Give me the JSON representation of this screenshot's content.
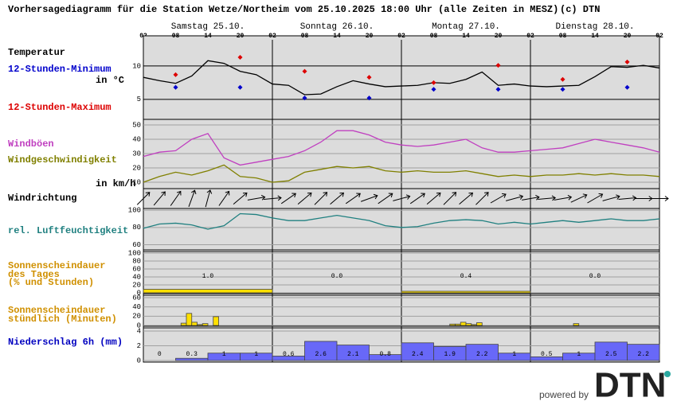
{
  "header": {
    "title": "Vorhersagediagramm für die Station Wetze/Northeim vom 25.10.2025 18:00 Uhr (alle Zeiten in MESZ)",
    "copyright": "(c) DTN",
    "days": [
      "Samstag 25.10.",
      "Sonntag 26.10.",
      "Montag 27.10.",
      "Dienstag 28.10."
    ],
    "xlim": [
      0,
      96
    ],
    "xticks": [
      {
        "value": 0,
        "label": "02"
      },
      {
        "value": 6,
        "label": "08"
      },
      {
        "value": 12,
        "label": "14"
      },
      {
        "value": 18,
        "label": "20"
      },
      {
        "value": 24,
        "label": "02"
      },
      {
        "value": 30,
        "label": "08"
      },
      {
        "value": 36,
        "label": "14"
      },
      {
        "value": 42,
        "label": "20"
      },
      {
        "value": 48,
        "label": "02"
      },
      {
        "value": 54,
        "label": "08"
      },
      {
        "value": 60,
        "label": "14"
      },
      {
        "value": 66,
        "label": "20"
      },
      {
        "value": 72,
        "label": "02"
      },
      {
        "value": 78,
        "label": "08"
      },
      {
        "value": 84,
        "label": "14"
      },
      {
        "value": 90,
        "label": "20"
      },
      {
        "value": 96,
        "label": "02"
      }
    ]
  },
  "chart_data": [
    {
      "type": "line",
      "label": "Temperatur",
      "unit": "in °C",
      "ylim": [
        2,
        14
      ],
      "yticks": [
        5,
        10
      ],
      "grid_color": "#000000",
      "x": [
        0,
        3,
        6,
        9,
        12,
        15,
        18,
        21,
        24,
        27,
        30,
        33,
        36,
        39,
        42,
        45,
        48,
        51,
        54,
        57,
        60,
        63,
        66,
        69,
        72,
        75,
        78,
        81,
        84,
        87,
        90,
        93,
        96
      ],
      "series": [
        {
          "color": "#000000",
          "values": [
            8.3,
            7.8,
            7.4,
            8.5,
            10.8,
            10.4,
            9.2,
            8.7,
            7.3,
            7.1,
            5.7,
            5.8,
            6.9,
            7.8,
            7.3,
            6.9,
            7.0,
            7.1,
            7.5,
            7.4,
            8.0,
            9.1,
            7.1,
            7.3,
            7.0,
            6.9,
            7.0,
            7.1,
            8.4,
            9.9,
            9.8,
            10.1,
            9.7
          ]
        },
        {
          "name": "12-Stunden-Maximum",
          "color": "#dd0000",
          "marker": "diamond",
          "x": [
            6,
            18,
            30,
            42,
            54,
            66,
            78,
            90
          ],
          "values": [
            8.7,
            11.3,
            9.2,
            8.3,
            7.5,
            10.1,
            8.0,
            10.6
          ]
        },
        {
          "name": "12-Stunden-Minimum",
          "color": "#0000cc",
          "marker": "diamond",
          "x": [
            6,
            18,
            30,
            42,
            54,
            66,
            78,
            90
          ],
          "values": [
            6.8,
            6.8,
            5.2,
            5.2,
            6.5,
            6.5,
            6.5,
            6.8
          ]
        }
      ]
    },
    {
      "type": "line",
      "unit": "in km/h",
      "ylim": [
        5,
        52
      ],
      "yticks": [
        10,
        20,
        30,
        40,
        50
      ],
      "grid_color": "#a0a0a0",
      "x": [
        0,
        3,
        6,
        9,
        12,
        15,
        18,
        21,
        24,
        27,
        30,
        33,
        36,
        39,
        42,
        45,
        48,
        51,
        54,
        57,
        60,
        63,
        66,
        69,
        72,
        75,
        78,
        81,
        84,
        87,
        90,
        93,
        96
      ],
      "series": [
        {
          "name": "Windböen",
          "color": "#c040c0",
          "values": [
            28,
            31,
            32,
            40,
            44,
            27,
            22,
            24,
            26,
            28,
            32,
            38,
            46,
            46,
            43,
            38,
            36,
            35,
            36,
            38,
            40,
            34,
            31,
            31,
            32,
            33,
            34,
            37,
            40,
            38,
            36,
            34,
            31
          ]
        },
        {
          "name": "Windgeschwindigkeit",
          "color": "#808000",
          "values": [
            10,
            14,
            17,
            15,
            18,
            22,
            14,
            13,
            10,
            11,
            17,
            19,
            21,
            20,
            21,
            18,
            17,
            18,
            17,
            17,
            18,
            16,
            14,
            15,
            14,
            15,
            15,
            16,
            15,
            16,
            15,
            15,
            14
          ]
        }
      ]
    },
    {
      "type": "arrows",
      "label": "Windrichtung",
      "x": [
        0,
        3,
        6,
        9,
        12,
        15,
        18,
        21,
        24,
        27,
        30,
        33,
        36,
        39,
        42,
        45,
        48,
        51,
        54,
        57,
        60,
        63,
        66,
        69,
        72,
        75,
        78,
        81,
        84,
        87,
        90,
        93,
        96
      ],
      "values": [
        225,
        220,
        215,
        200,
        195,
        215,
        230,
        260,
        265,
        235,
        230,
        225,
        230,
        235,
        250,
        235,
        255,
        235,
        230,
        225,
        230,
        225,
        240,
        255,
        260,
        265,
        260,
        245,
        240,
        255,
        265,
        270,
        270
      ]
    },
    {
      "type": "line",
      "ylim": [
        54,
        102
      ],
      "yticks": [
        60,
        80,
        100
      ],
      "grid_color": "#a0a0a0",
      "x": [
        0,
        3,
        6,
        9,
        12,
        15,
        18,
        21,
        24,
        27,
        30,
        33,
        36,
        39,
        42,
        45,
        48,
        51,
        54,
        57,
        60,
        63,
        66,
        69,
        72,
        75,
        78,
        81,
        84,
        87,
        90,
        93,
        96
      ],
      "series": [
        {
          "name": "rel. Luftfeuchtigkeit",
          "color": "#208080",
          "values": [
            79,
            84,
            85,
            83,
            78,
            82,
            96,
            95,
            91,
            88,
            88,
            91,
            94,
            91,
            88,
            82,
            80,
            81,
            85,
            88,
            89,
            88,
            84,
            86,
            84,
            86,
            88,
            86,
            88,
            90,
            88,
            88,
            90
          ]
        }
      ]
    },
    {
      "type": "histogram",
      "label": [
        "Sonnenscheindauer",
        "des Tages",
        "(% und Stunden)"
      ],
      "color": "#ffe000",
      "ylim": [
        0,
        100
      ],
      "yticks": [
        0,
        20,
        40,
        60,
        80,
        100
      ],
      "grid_color": "#a0a0a0",
      "bins": [
        0,
        24,
        48,
        72,
        96
      ],
      "values": [
        9,
        0,
        4,
        0
      ],
      "hours": [
        {
          "value": 1.0,
          "label": "1.0"
        },
        {
          "value": 0.0,
          "label": "0.0"
        },
        {
          "value": 0.4,
          "label": "0.4"
        },
        {
          "value": 0.0,
          "label": "0.0"
        }
      ]
    },
    {
      "type": "bar",
      "label": [
        "Sonnenscheindauer",
        "stündlich (Minuten)"
      ],
      "color": "#ffe000",
      "ylim": [
        0,
        60
      ],
      "yticks": [
        0,
        20,
        40,
        60
      ],
      "grid_color": "#a0a0a0",
      "x": [
        7,
        8,
        9,
        10,
        11,
        13,
        57,
        58,
        59,
        60,
        61,
        62,
        80
      ],
      "values": [
        5,
        26,
        7,
        2,
        4,
        19,
        3,
        3,
        7,
        4,
        2,
        6,
        4
      ]
    },
    {
      "type": "histogram",
      "label": "Niederschlag 6h (mm)",
      "color": "#6868f8",
      "ylim": [
        0,
        4
      ],
      "yticks": [
        0,
        2,
        4
      ],
      "grid_color": "#a0a0a0",
      "bins": [
        0,
        6,
        12,
        18,
        24,
        30,
        36,
        42,
        48,
        54,
        60,
        66,
        72,
        78,
        84,
        90,
        96
      ],
      "values": [
        0,
        0.3,
        1,
        1,
        0.6,
        2.6,
        2.1,
        0.8,
        2.4,
        1.9,
        2.2,
        1,
        0.5,
        1,
        2.5,
        2.2
      ]
    }
  ],
  "footer": {
    "powered_by": "powered by",
    "logo": "DTN"
  }
}
